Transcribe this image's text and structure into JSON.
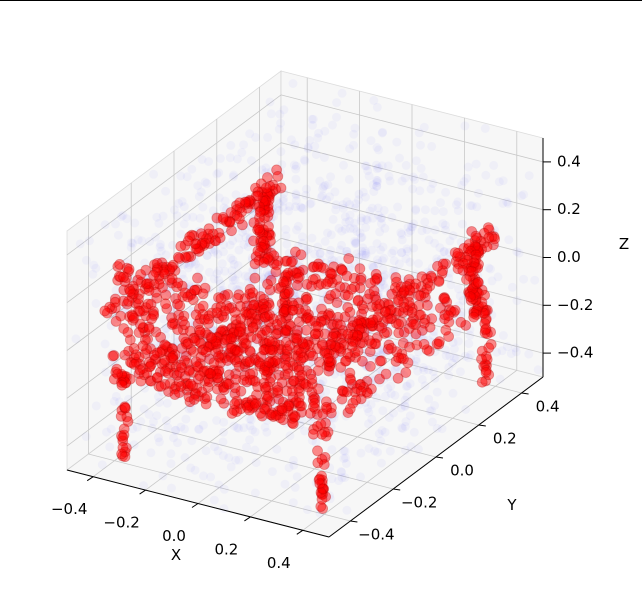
{
  "chart_data": {
    "type": "scatter",
    "projection": "3d",
    "title": "",
    "xlabel": "X",
    "ylabel": "Y",
    "zlabel": "Z",
    "xlim": [
      -0.5,
      0.5
    ],
    "ylim": [
      -0.5,
      0.5
    ],
    "zlim": [
      -0.5,
      0.5
    ],
    "xticks": [
      "−0.4",
      "−0.2",
      "0.0",
      "0.2",
      "0.4"
    ],
    "yticks": [
      "−0.4",
      "−0.2",
      "0.0",
      "0.2",
      "0.4"
    ],
    "zticks": [
      "−0.4",
      "−0.2",
      "0.0",
      "0.2",
      "0.4"
    ],
    "xtick_values": [
      -0.4,
      -0.2,
      0.0,
      0.2,
      0.4
    ],
    "ytick_values": [
      -0.4,
      -0.2,
      0.0,
      0.2,
      0.4
    ],
    "ztick_values": [
      -0.4,
      -0.2,
      0.0,
      0.2,
      0.4
    ],
    "grid": true,
    "legend": "none",
    "series": [
      {
        "kind": "uniform-noise",
        "color": "#0000ff",
        "alpha": 0.03,
        "count": 1400,
        "range": [
          -0.5,
          0.5
        ]
      },
      {
        "kind": "chair-shape",
        "color": "#ff0000",
        "alpha": 0.45,
        "seat_height": -0.15,
        "seat_extent": [
          -0.4,
          0.4
        ],
        "back_side": "y-min",
        "back_top": 0.35,
        "arm_height": 0.15,
        "leg_bottom": -0.5,
        "leg_positions": [
          [
            -0.38,
            -0.38
          ],
          [
            0.38,
            -0.38
          ],
          [
            -0.38,
            0.38
          ],
          [
            0.38,
            0.38
          ]
        ]
      }
    ]
  }
}
